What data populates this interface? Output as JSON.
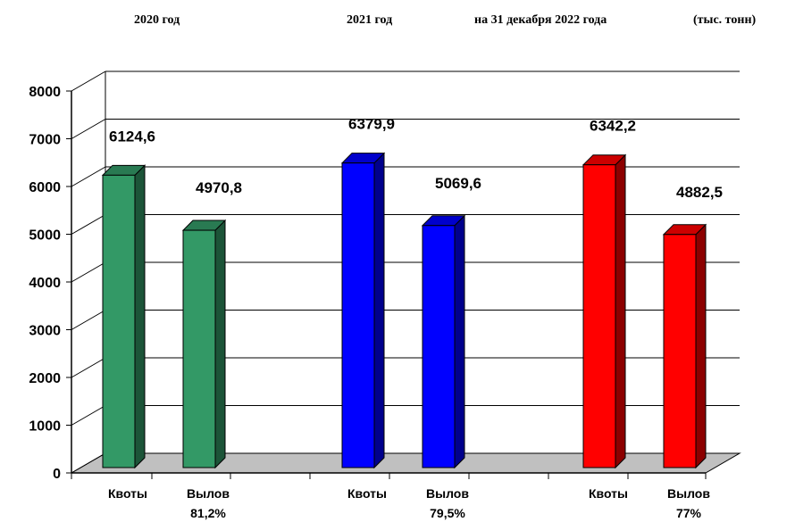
{
  "chart_data": {
    "type": "bar",
    "header": {
      "period_1": "2020  год",
      "period_2": "2021  год",
      "period_3": "на 31 декабря 2022 года",
      "unit": "(тыс. тонн)"
    },
    "ylim": [
      0,
      8000
    ],
    "yticks": [
      "0",
      "1000",
      "2000",
      "3000",
      "4000",
      "5000",
      "6000",
      "7000",
      "8000"
    ],
    "grid": true,
    "groups": [
      {
        "color": "#339966",
        "bars": [
          {
            "category": "Квоты",
            "value": 6124.6,
            "label": "6124,6",
            "sub": ""
          },
          {
            "category": "Вылов",
            "value": 4970.8,
            "label": "4970,8",
            "sub": "81,2%"
          }
        ]
      },
      {
        "color": "#0000ff",
        "bars": [
          {
            "category": "Квоты",
            "value": 6379.9,
            "label": "6379,9",
            "sub": ""
          },
          {
            "category": "Вылов",
            "value": 5069.6,
            "label": "5069,6",
            "sub": "79,5%"
          }
        ]
      },
      {
        "color": "#ff0000",
        "bars": [
          {
            "category": "Квоты",
            "value": 6342.2,
            "label": "6342,2",
            "sub": ""
          },
          {
            "category": "Вылов",
            "value": 4882.5,
            "label": "4882,5",
            "sub": "77%"
          }
        ]
      }
    ]
  }
}
